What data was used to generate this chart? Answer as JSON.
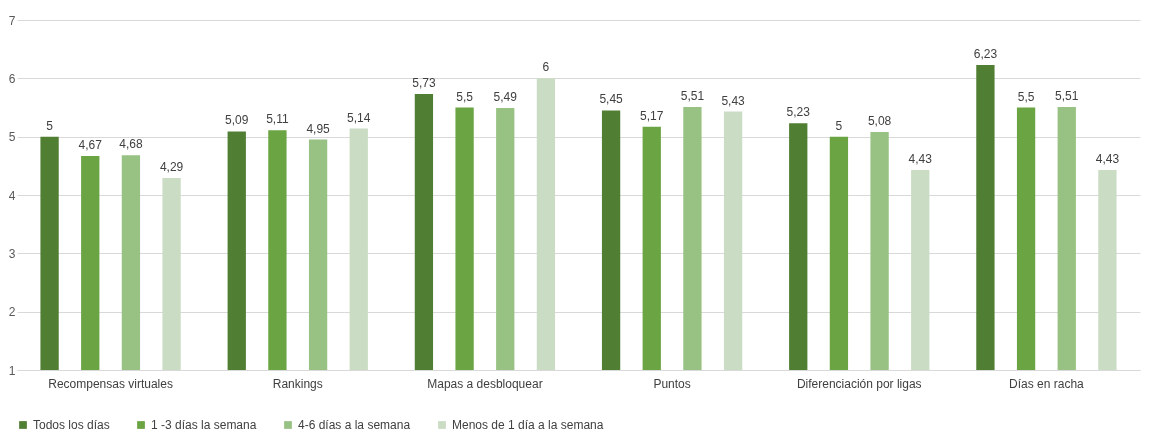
{
  "chart_data": {
    "type": "bar",
    "categories": [
      "Recompensas virtuales",
      "Rankings",
      "Mapas a desbloquear",
      "Puntos",
      "Diferenciación por ligas",
      "Días en racha"
    ],
    "series": [
      {
        "name": "Todos los días",
        "color": "#507e32",
        "values": [
          5,
          5.09,
          5.73,
          5.45,
          5.23,
          6.23
        ],
        "value_labels": [
          "5",
          "5,09",
          "5,73",
          "5,45",
          "5,23",
          "6,23"
        ]
      },
      {
        "name": "1 -3 días la semana",
        "color": "#6aa443",
        "values": [
          4.67,
          5.11,
          5.5,
          5.17,
          5,
          5.5
        ],
        "value_labels": [
          "4,67",
          "5,11",
          "5,5",
          "5,17",
          "5",
          "5,5"
        ]
      },
      {
        "name": "4-6 días a la semana",
        "color": "#98c284",
        "values": [
          4.68,
          4.95,
          5.49,
          5.51,
          5.08,
          5.51
        ],
        "value_labels": [
          "4,68",
          "4,95",
          "5,49",
          "5,51",
          "5,08",
          "5,51"
        ]
      },
      {
        "name": "Menos de 1 día a la semana",
        "color": "#cadcc3",
        "values": [
          4.29,
          5.14,
          6,
          5.43,
          4.43,
          4.43
        ],
        "value_labels": [
          "4,29",
          "5,14",
          "6",
          "5,43",
          "4,43",
          "4,43"
        ]
      }
    ],
    "ylim": [
      1,
      7
    ],
    "yticks": [
      1,
      2,
      3,
      4,
      5,
      6,
      7
    ],
    "grid": "y",
    "legend": "bottom"
  }
}
